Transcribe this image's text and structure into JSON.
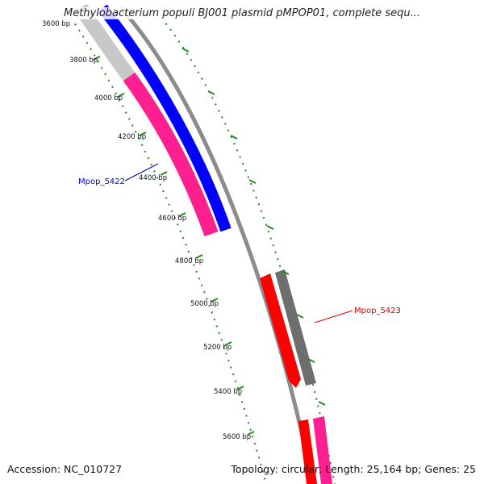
{
  "title": "Methylobacterium populi BJ001 plasmid pMPOP01, complete sequ...",
  "accession_text": "Accession: NC_010727",
  "summary_text": "Topology: circular; Length: 25,164 bp; Genes: 25",
  "colors": {
    "backbone": "#8c8c8c",
    "tick": "#1f8a1f",
    "blue_gene": "#0000ff",
    "pink_gene": "#ff1f8f",
    "grey_gene": "#c8c8c8",
    "red_gene": "#ff0000",
    "dark_gene": "#6e6e6e",
    "label_blue": "#0000cc",
    "label_red": "#dd0000"
  },
  "ruler": {
    "labels": [
      "3600 bp",
      "3800 bp",
      "4000 bp",
      "4200 bp",
      "4400 bp",
      "4600 bp",
      "4800 bp",
      "5000 bp",
      "5200 bp",
      "5400 bp",
      "5600 bp"
    ]
  },
  "gene_labels": {
    "left": "Mpop_5422",
    "right": "Mpop_5423"
  }
}
